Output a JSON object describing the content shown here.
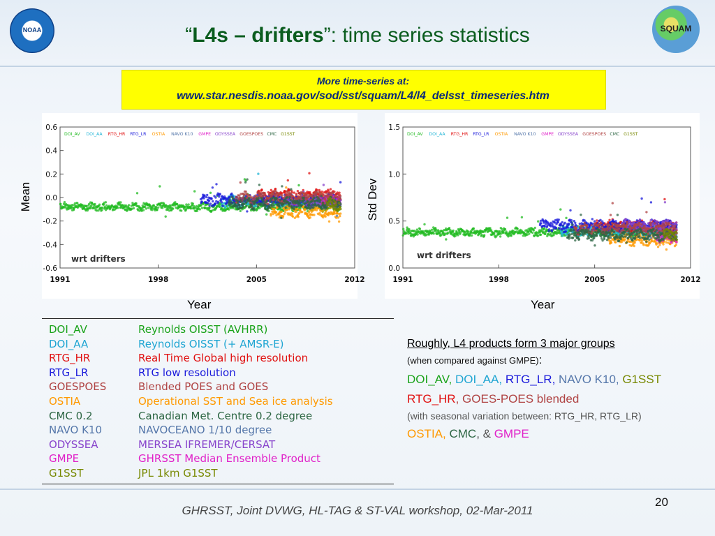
{
  "slide": {
    "title_open_quote": "“",
    "title_bold": "L4s – drifters",
    "title_close_quote": "”",
    "title_rest": ": time series statistics",
    "link_intro": "More time-series at:",
    "link_url": "www.star.nesdis.noaa.gov/sod/sst/squam/L4/l4_delsst_timeseries.htm",
    "footer": "GHRSST, Joint DVWG, HL-TAG & ST-VAL workshop, 02-Mar-2011",
    "page_number": "20",
    "logo_left": "NOAA",
    "logo_right": "SQUAM"
  },
  "chart_data": [
    {
      "type": "scatter",
      "panel": "mean",
      "ylabel": "Mean",
      "xlabel": "Year",
      "xlim": [
        1991,
        2012
      ],
      "ylim": [
        -0.6,
        0.6
      ],
      "xticks": [
        "1991",
        "1998",
        "2005",
        "2012"
      ],
      "yticks": [
        "0.6",
        "0.4",
        "0.2",
        "0.0",
        "-0.2",
        "-0.4",
        "-0.6"
      ],
      "annotation": "wrt drifters",
      "legend_placement": "top",
      "series": [
        {
          "name": "DOI_AV",
          "color": "#22bb22",
          "x_range": [
            1991,
            2011
          ],
          "center": -0.08
        },
        {
          "name": "DOI_AA",
          "color": "#22b5d6",
          "x_range": [
            2002.5,
            2011
          ],
          "center": -0.03
        },
        {
          "name": "RTG_HR",
          "color": "#e01010",
          "x_range": [
            2005,
            2011
          ],
          "center": 0.02
        },
        {
          "name": "RTG_LR",
          "color": "#1a1adb",
          "x_range": [
            2001,
            2011
          ],
          "center": -0.02
        },
        {
          "name": "OSTIA",
          "color": "#ff9900",
          "x_range": [
            2006,
            2011
          ],
          "center": -0.12
        },
        {
          "name": "NAVO K10",
          "color": "#5577aa",
          "x_range": [
            2009,
            2011
          ],
          "center": -0.04
        },
        {
          "name": "GMPE",
          "color": "#e020c8",
          "x_range": [
            2009.5,
            2011
          ],
          "center": -0.02
        },
        {
          "name": "ODYSSEA",
          "color": "#8844cc",
          "x_range": [
            2007,
            2011
          ],
          "center": -0.04
        },
        {
          "name": "GOESPOES",
          "color": "#b04444",
          "x_range": [
            2003.5,
            2011
          ],
          "center": 0.0
        },
        {
          "name": "CMC",
          "color": "#2d6644",
          "x_range": [
            2003,
            2011
          ],
          "center": -0.05
        },
        {
          "name": "G1SST",
          "color": "#778800",
          "x_range": [
            2010,
            2011
          ],
          "center": -0.06
        }
      ]
    },
    {
      "type": "scatter",
      "panel": "std",
      "ylabel": "Std Dev",
      "xlabel": "Year",
      "xlim": [
        1991,
        2012
      ],
      "ylim": [
        0.0,
        1.5
      ],
      "xticks": [
        "1991",
        "1998",
        "2005",
        "2012"
      ],
      "yticks": [
        "1.5",
        "1.0",
        "0.5",
        "0.0"
      ],
      "annotation": "wrt drifters",
      "legend_placement": "top",
      "series": [
        {
          "name": "DOI_AV",
          "color": "#22bb22",
          "x_range": [
            1991,
            2011
          ],
          "center": 0.38
        },
        {
          "name": "DOI_AA",
          "color": "#22b5d6",
          "x_range": [
            2002.5,
            2011
          ],
          "center": 0.4
        },
        {
          "name": "RTG_HR",
          "color": "#e01010",
          "x_range": [
            2005,
            2011
          ],
          "center": 0.45
        },
        {
          "name": "RTG_LR",
          "color": "#1a1adb",
          "x_range": [
            2001,
            2011
          ],
          "center": 0.45
        },
        {
          "name": "OSTIA",
          "color": "#ff9900",
          "x_range": [
            2006,
            2011
          ],
          "center": 0.3
        },
        {
          "name": "NAVO K10",
          "color": "#5577aa",
          "x_range": [
            2009,
            2011
          ],
          "center": 0.35
        },
        {
          "name": "GMPE",
          "color": "#e020c8",
          "x_range": [
            2009.5,
            2011
          ],
          "center": 0.33
        },
        {
          "name": "ODYSSEA",
          "color": "#8844cc",
          "x_range": [
            2007,
            2011
          ],
          "center": 0.45
        },
        {
          "name": "GOESPOES",
          "color": "#b04444",
          "x_range": [
            2003.5,
            2011
          ],
          "center": 0.42
        },
        {
          "name": "CMC",
          "color": "#2d6644",
          "x_range": [
            2003,
            2011
          ],
          "center": 0.35
        },
        {
          "name": "G1SST",
          "color": "#778800",
          "x_range": [
            2010,
            2011
          ],
          "center": 0.35
        }
      ]
    }
  ],
  "chart_legend": [
    {
      "label": "DOI_AV",
      "color": "#22bb22"
    },
    {
      "label": "DOI_AA",
      "color": "#22b5d6"
    },
    {
      "label": "RTG_HR",
      "color": "#e01010"
    },
    {
      "label": "RTG_LR",
      "color": "#1a1adb"
    },
    {
      "label": "OSTIA",
      "color": "#ff9900"
    },
    {
      "label": "NAVO K10",
      "color": "#5577aa"
    },
    {
      "label": "GMPE",
      "color": "#e020c8"
    },
    {
      "label": "ODYSSEA",
      "color": "#8844cc"
    },
    {
      "label": "GOESPOES",
      "color": "#b04444"
    },
    {
      "label": "CMC",
      "color": "#2d6644"
    },
    {
      "label": "G1SST",
      "color": "#778800"
    }
  ],
  "product_table": [
    {
      "code": "DOI_AV",
      "desc": "Reynolds OISST (AVHRR)",
      "color": "#1aa31a"
    },
    {
      "code": "DOI_AA",
      "desc": "Reynolds OISST (+ AMSR-E)",
      "color": "#1fa5d2"
    },
    {
      "code": "RTG_HR",
      "desc": "Real Time Global high resolution",
      "color": "#e01010"
    },
    {
      "code": "RTG_LR",
      "desc": "RTG low resolution",
      "color": "#1a1adb"
    },
    {
      "code": "GOESPOES",
      "desc": "Blended POES and GOES",
      "color": "#b04444"
    },
    {
      "code": "OSTIA",
      "desc": "Operational SST and Sea ice analysis",
      "color": "#ff9900"
    },
    {
      "code": "CMC 0.2",
      "desc": "Canadian Met. Centre 0.2 degree",
      "color": "#2d6644"
    },
    {
      "code": "NAVO K10",
      "desc": "NAVOCEANO 1/10 degree",
      "color": "#5577aa"
    },
    {
      "code": "ODYSSEA",
      "desc": "MERSEA IFREMER/CERSAT",
      "color": "#8844cc"
    },
    {
      "code": "GMPE",
      "desc": "GHRSST Median Ensemble Product",
      "color": "#e020c8"
    },
    {
      "code": "G1SST",
      "desc": "JPL 1km G1SST",
      "color": "#778800"
    }
  ],
  "notes": {
    "heading": "Roughly, L4 products form 3 major groups",
    "subheading": "(when compared against GMPE)",
    "subheading_colon": ":",
    "group1": [
      {
        "text": "DOI_AV",
        "color": "#1aa31a"
      },
      {
        "text": ", ",
        "color": "#1aa31a"
      },
      {
        "text": "DOI_AA",
        "color": "#1fa5d2"
      },
      {
        "text": ", ",
        "color": "#1fa5d2"
      },
      {
        "text": "RTG_LR",
        "color": "#1a1adb"
      },
      {
        "text": ", ",
        "color": "#1a1adb"
      },
      {
        "text": "NAVO K10",
        "color": "#5577aa"
      },
      {
        "text": ", ",
        "color": "#5577aa"
      },
      {
        "text": "G1SST",
        "color": "#778800"
      }
    ],
    "group2": [
      {
        "text": "RTG_HR",
        "color": "#e01010"
      },
      {
        "text": ", ",
        "color": "#b04444"
      },
      {
        "text": "GOES-POES blended",
        "color": "#b04444"
      }
    ],
    "group2_note": "(with seasonal variation between: RTG_HR, RTG_LR)",
    "group3": [
      {
        "text": "OSTIA",
        "color": "#ff9900"
      },
      {
        "text": ", ",
        "color": "#ff9900"
      },
      {
        "text": "CMC",
        "color": "#2d6644"
      },
      {
        "text": ", & ",
        "color": "#555555"
      },
      {
        "text": "GMPE",
        "color": "#e020c8"
      }
    ]
  }
}
